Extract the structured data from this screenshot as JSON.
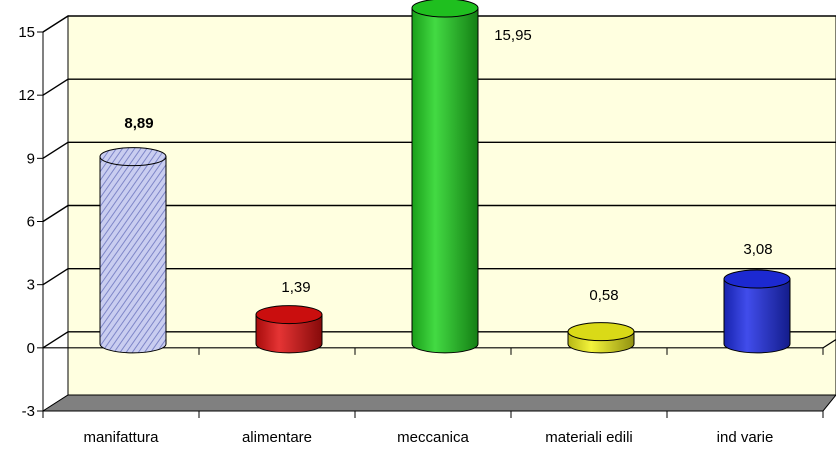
{
  "chart_data": {
    "type": "bar",
    "style": "3d-cylinder",
    "categories": [
      "manifattura",
      "alimentare",
      "meccanica",
      "materiali edili",
      "ind varie"
    ],
    "values": [
      8.89,
      1.39,
      15.95,
      0.58,
      3.08
    ],
    "data_labels": [
      "8,89",
      "1,39",
      "15,95",
      "0,58",
      "3,08"
    ],
    "bold_labels": [
      true,
      false,
      false,
      false,
      false
    ],
    "colors": [
      "#b8bde8",
      "#e01010",
      "#22d422",
      "#f2f21a",
      "#1f2ee8"
    ],
    "patterned": [
      true,
      false,
      false,
      false,
      false
    ],
    "yticks": [
      -3,
      0,
      3,
      6,
      9,
      12,
      15
    ],
    "ytick_labels": [
      "-3",
      "0",
      "3",
      "6",
      "9",
      "12",
      "15"
    ],
    "ylim": [
      -3,
      15
    ],
    "grid": true,
    "plot_background": "#ffffe0",
    "floor_color": "#808080",
    "title": "",
    "xlabel": "",
    "ylabel": ""
  }
}
